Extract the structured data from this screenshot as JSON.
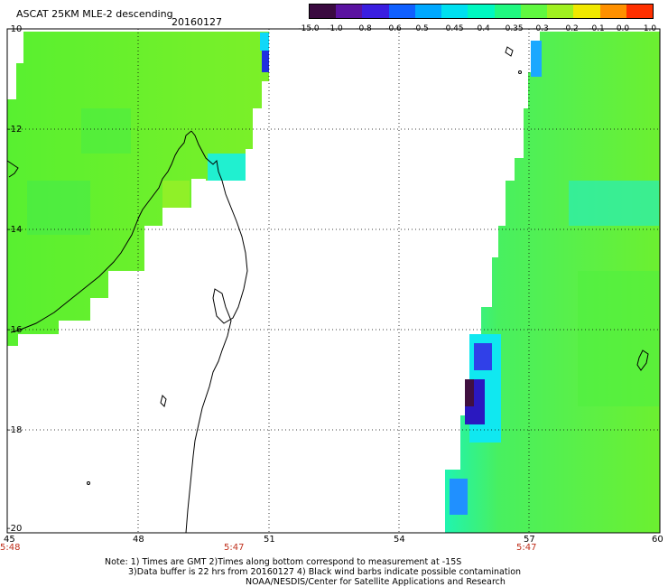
{
  "header": {
    "title": "ASCAT 25KM MLE-2 descending",
    "date": "20160127"
  },
  "colorbar": {
    "labels": [
      "-15.0",
      "-1.0",
      "-0.8",
      "-0.6",
      "-0.5",
      "-0.45",
      "-0.4",
      "-0.35",
      "-0.3",
      "-0.2",
      "-0.1",
      "0.0",
      "1.0"
    ],
    "colors": [
      "#3a0a40",
      "#5a12a0",
      "#3a1ee0",
      "#1060ff",
      "#00a8ff",
      "#00e0f0",
      "#00f8c0",
      "#20f880",
      "#60f840",
      "#a0f020",
      "#f0e800",
      "#ff9000",
      "#ff3000"
    ]
  },
  "map": {
    "y_ticks": [
      "-10",
      "-12",
      "-14",
      "-16",
      "-18",
      "-20"
    ],
    "x_ticks": [
      "45",
      "48",
      "51",
      "54",
      "57",
      "60"
    ],
    "time_labels": [
      "5:48",
      "5:47",
      "5:47"
    ]
  },
  "footer": {
    "line1": "Note: 1) Times are GMT 2)Times along bottom correspond to measurement at -15S",
    "line2": "3)Data buffer is 22 hrs from 20160127 4) Black wind barbs indicate possible contamination",
    "line3": "NOAA/NESDIS/Center for Satellite Applications and Research"
  }
}
